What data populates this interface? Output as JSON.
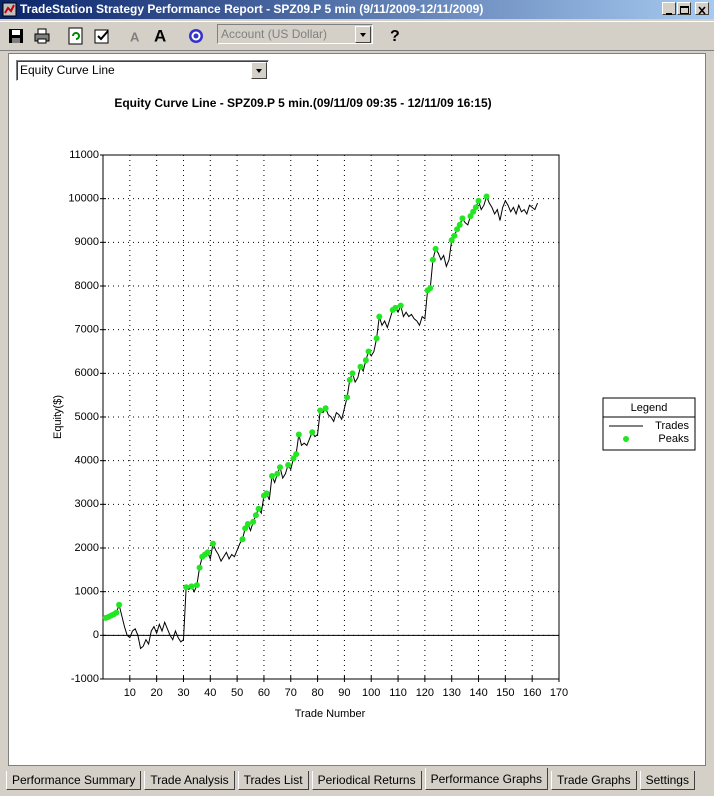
{
  "window": {
    "title": "TradeStation Strategy Performance Report - SPZ09.P 5 min (9/11/2009-12/11/2009)"
  },
  "toolbar": {
    "account": "Account (US Dollar)"
  },
  "graph_selector": "Equity Curve Line",
  "chart_data": {
    "type": "line",
    "title": "Equity Curve Line - SPZ09.P 5 min.(09/11/09 09:35 - 12/11/09 16:15)",
    "x_label": "Trade Number",
    "y_label": "Equity($)",
    "xlim": [
      0,
      170
    ],
    "xticks": [
      10,
      20,
      30,
      40,
      50,
      60,
      70,
      80,
      90,
      100,
      110,
      120,
      130,
      140,
      150,
      160,
      170
    ],
    "ylim": [
      -1000,
      11000
    ],
    "yticks": [
      -1000,
      0,
      1000,
      2000,
      3000,
      4000,
      5000,
      6000,
      7000,
      8000,
      9000,
      10000,
      11000
    ],
    "grid": true,
    "legend": {
      "title": "Legend",
      "position": "right"
    },
    "series": [
      {
        "name": "Trades",
        "type": "line",
        "color": "#000000",
        "x": [
          1,
          2,
          3,
          4,
          5,
          6,
          7,
          8,
          9,
          10,
          11,
          12,
          13,
          14,
          15,
          16,
          17,
          18,
          19,
          20,
          21,
          22,
          23,
          24,
          25,
          26,
          27,
          28,
          29,
          30,
          31,
          32,
          33,
          34,
          35,
          36,
          37,
          38,
          39,
          40,
          41,
          42,
          43,
          44,
          45,
          46,
          47,
          48,
          49,
          50,
          51,
          52,
          53,
          54,
          55,
          56,
          57,
          58,
          59,
          60,
          61,
          62,
          63,
          64,
          65,
          66,
          67,
          68,
          69,
          70,
          71,
          72,
          73,
          74,
          75,
          76,
          77,
          78,
          79,
          80,
          81,
          82,
          83,
          84,
          85,
          86,
          87,
          88,
          89,
          90,
          91,
          92,
          93,
          94,
          95,
          96,
          97,
          98,
          99,
          100,
          101,
          102,
          103,
          104,
          105,
          106,
          107,
          108,
          109,
          110,
          111,
          112,
          113,
          114,
          115,
          116,
          117,
          118,
          119,
          120,
          121,
          122,
          123,
          124,
          125,
          126,
          127,
          128,
          129,
          130,
          131,
          132,
          133,
          134,
          135,
          136,
          137,
          138,
          139,
          140,
          141,
          142,
          143,
          144,
          145,
          146,
          147,
          148,
          149,
          150,
          151,
          152,
          153,
          154,
          155,
          156,
          157,
          158,
          159,
          160,
          161,
          162
        ],
        "values": [
          400,
          420,
          450,
          480,
          520,
          700,
          450,
          200,
          0,
          -50,
          100,
          150,
          0,
          -300,
          -250,
          -100,
          -200,
          100,
          200,
          50,
          250,
          100,
          300,
          150,
          0,
          -100,
          100,
          -50,
          -150,
          -100,
          1100,
          1050,
          1120,
          1000,
          1150,
          1550,
          1800,
          1850,
          1900,
          1750,
          2100,
          1950,
          1850,
          1700,
          1800,
          1900,
          1750,
          1850,
          1800,
          1950,
          2100,
          2200,
          2450,
          2550,
          2400,
          2600,
          2750,
          2900,
          2800,
          3200,
          3250,
          3100,
          3650,
          3500,
          3700,
          3850,
          3600,
          3700,
          3900,
          3800,
          4050,
          4150,
          4600,
          4350,
          4400,
          4350,
          4500,
          4650,
          4550,
          4600,
          5150,
          5100,
          5200,
          5050,
          5000,
          4900,
          5100,
          5050,
          4950,
          5200,
          5450,
          5850,
          6000,
          5800,
          5900,
          6150,
          6050,
          6300,
          6500,
          6400,
          6500,
          6800,
          7300,
          7100,
          7200,
          7050,
          7250,
          7450,
          7500,
          7400,
          7550,
          7300,
          7400,
          7300,
          7350,
          7250,
          7200,
          7100,
          7300,
          7250,
          7900,
          7950,
          8600,
          8850,
          8750,
          8600,
          8700,
          8450,
          8600,
          9050,
          9150,
          9300,
          9400,
          9550,
          9450,
          9400,
          9600,
          9700,
          9800,
          9950,
          9750,
          9850,
          10050,
          9900,
          9800,
          9650,
          9750,
          9500,
          9800,
          9950,
          9850,
          9700,
          9800,
          9650,
          9850,
          9700,
          9750,
          9650,
          9850,
          9800,
          9750,
          9900
        ]
      },
      {
        "name": "Peaks",
        "type": "scatter",
        "color": "#22e622",
        "x": [
          1,
          2,
          3,
          4,
          5,
          6,
          31,
          33,
          35,
          36,
          37,
          38,
          39,
          41,
          52,
          53,
          54,
          56,
          57,
          58,
          60,
          61,
          63,
          65,
          66,
          69,
          71,
          72,
          73,
          78,
          81,
          83,
          91,
          92,
          93,
          96,
          98,
          99,
          102,
          103,
          108,
          109,
          111,
          121,
          122,
          123,
          124,
          130,
          131,
          132,
          133,
          134,
          137,
          138,
          139,
          140,
          143
        ],
        "values": [
          400,
          420,
          450,
          480,
          520,
          700,
          1100,
          1120,
          1150,
          1550,
          1800,
          1850,
          1900,
          2100,
          2200,
          2450,
          2550,
          2600,
          2750,
          2900,
          3200,
          3250,
          3650,
          3700,
          3850,
          3900,
          4050,
          4150,
          4600,
          4650,
          5150,
          5200,
          5450,
          5850,
          6000,
          6150,
          6300,
          6500,
          6800,
          7300,
          7450,
          7500,
          7550,
          7900,
          7950,
          8600,
          8850,
          9050,
          9150,
          9300,
          9400,
          9550,
          9600,
          9700,
          9800,
          9950,
          10050
        ]
      }
    ]
  },
  "tabs": [
    "Performance Summary",
    "Trade Analysis",
    "Trades List",
    "Periodical Returns",
    "Performance Graphs",
    "Trade Graphs",
    "Settings"
  ],
  "active_tab": 4
}
